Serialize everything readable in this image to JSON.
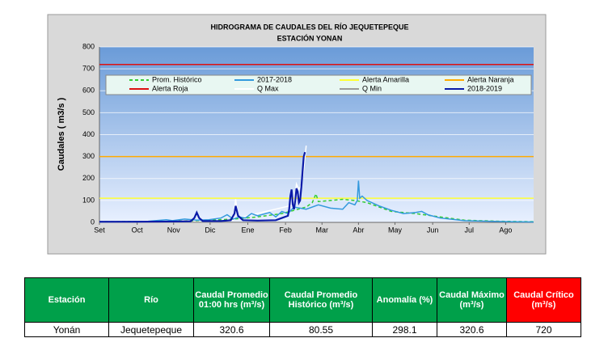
{
  "chart_data": {
    "type": "line",
    "title": "HIDROGRAMA DE CAUDALES DEL RÍO JEQUETEPEQUE",
    "subtitle": "ESTACIÓN  YONAN",
    "y_label": "Caudales ( m3/s )",
    "xlim": [
      0,
      357
    ],
    "xticks": [
      {
        "value": 0,
        "label": "Set"
      },
      {
        "value": 31,
        "label": "Oct"
      },
      {
        "value": 61,
        "label": "Nov"
      },
      {
        "value": 91,
        "label": "Dic"
      },
      {
        "value": 122,
        "label": "Ene"
      },
      {
        "value": 153,
        "label": "Feb"
      },
      {
        "value": 183,
        "label": "Mar"
      },
      {
        "value": 213,
        "label": "Abr"
      },
      {
        "value": 243,
        "label": "May"
      },
      {
        "value": 274,
        "label": "Jun"
      },
      {
        "value": 304,
        "label": "Jul"
      },
      {
        "value": 334,
        "label": "Ago"
      }
    ],
    "ylim": [
      0,
      800
    ],
    "yticks": [
      0,
      100,
      200,
      300,
      400,
      500,
      600,
      700,
      800
    ],
    "grid": true,
    "series": [
      {
        "name": "Prom. Histórico",
        "color": "#33cc33",
        "dashed": true,
        "x": [
          0,
          30,
          60,
          90,
          110,
          130,
          150,
          170,
          175,
          178,
          180,
          190,
          200,
          210,
          220,
          230,
          240,
          260,
          280,
          300,
          330,
          357
        ],
        "values": [
          3,
          4,
          5,
          10,
          15,
          25,
          40,
          70,
          90,
          130,
          95,
          100,
          105,
          100,
          90,
          70,
          50,
          40,
          25,
          10,
          5,
          3
        ]
      },
      {
        "name": "2017-2018",
        "color": "#3399dd",
        "x": [
          0,
          20,
          40,
          55,
          60,
          70,
          80,
          90,
          100,
          105,
          110,
          115,
          120,
          125,
          130,
          140,
          145,
          150,
          155,
          160,
          170,
          180,
          190,
          200,
          205,
          210,
          212,
          213,
          214,
          216,
          220,
          230,
          240,
          250,
          260,
          265,
          270,
          280,
          300,
          320,
          340,
          357
        ],
        "values": [
          2,
          3,
          5,
          12,
          8,
          15,
          10,
          12,
          20,
          35,
          15,
          25,
          20,
          40,
          30,
          45,
          25,
          50,
          40,
          70,
          60,
          80,
          65,
          60,
          90,
          80,
          100,
          190,
          110,
          120,
          100,
          75,
          55,
          40,
          45,
          50,
          35,
          20,
          8,
          5,
          3,
          2
        ]
      },
      {
        "name": "Alerta Amarilla",
        "color": "#ffff33",
        "x": [
          0,
          357
        ],
        "values": [
          110,
          110
        ]
      },
      {
        "name": "Alerta Naranja",
        "color": "#ffaa00",
        "x": [
          0,
          357
        ],
        "values": [
          300,
          300
        ]
      },
      {
        "name": "Alerta Roja",
        "color": "#dd1111",
        "x": [
          0,
          357
        ],
        "values": [
          720,
          720
        ]
      },
      {
        "name": "Q Max",
        "color": "#ffffff",
        "x": [
          0,
          110,
          112,
          114,
          160,
          162,
          164,
          166,
          168,
          170
        ],
        "values": [
          4,
          10,
          105,
          20,
          80,
          175,
          150,
          170,
          240,
          350
        ]
      },
      {
        "name": "Q Min",
        "color": "#999999",
        "x": [
          0,
          180
        ],
        "values": [
          1,
          1
        ]
      },
      {
        "name": "2018-2019",
        "color": "#0a1aa8",
        "x": [
          0,
          30,
          60,
          75,
          78,
          80,
          82,
          85,
          100,
          108,
          111,
          112,
          114,
          118,
          130,
          145,
          150,
          155,
          156,
          157,
          158,
          159,
          160,
          161,
          162,
          163,
          164,
          165,
          166,
          167,
          168,
          169
        ],
        "values": [
          3,
          3,
          4,
          5,
          20,
          45,
          20,
          6,
          6,
          10,
          40,
          75,
          30,
          10,
          8,
          10,
          20,
          30,
          60,
          120,
          150,
          80,
          60,
          100,
          155,
          140,
          90,
          100,
          160,
          230,
          300,
          320
        ]
      }
    ]
  },
  "table": {
    "header": [
      "Estación",
      "Río",
      "Caudal Promedio 01:00 hrs (m³/s)",
      "Caudal Promedio Histórico (m³/s)",
      "Anomalía (%)",
      "Caudal Máximo (m³/s)",
      "Caudal Crítico (m³/s)"
    ],
    "rows": [
      [
        "Yonán",
        "Jequetepeque",
        320.6,
        80.55,
        298.1,
        320.6,
        720
      ]
    ]
  }
}
